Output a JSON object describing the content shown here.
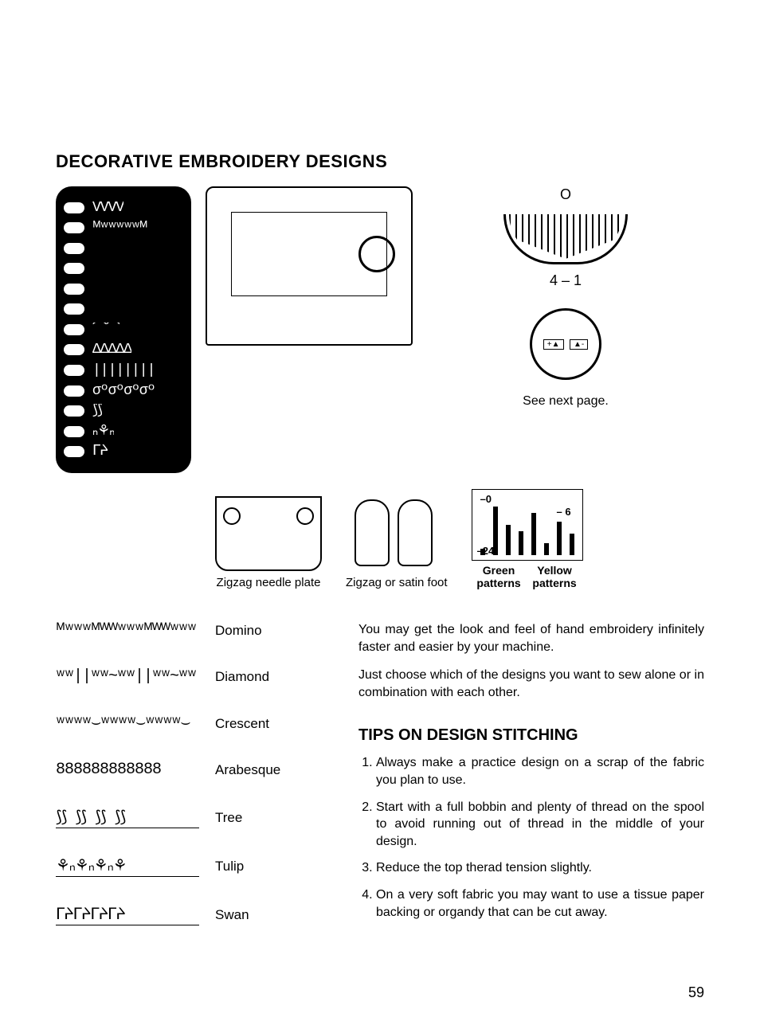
{
  "title": "DECORATIVE EMBROIDERY DESIGNS",
  "page_number": "59",
  "dial": {
    "o_symbol": "O",
    "range_inside": "4",
    "label": "4 – 1",
    "see_next": "See next page."
  },
  "wheel": {
    "left": "+▲",
    "right": "▲-"
  },
  "row2": {
    "plate_caption": "Zigzag needle plate",
    "foot_caption": "Zigzag or satin foot",
    "chart": {
      "n0": "–0",
      "n24": "–24",
      "n6": "– 6",
      "green": "Green patterns",
      "yellow": "Yellow patterns",
      "bars_green": [
        10,
        80,
        50,
        40,
        70
      ],
      "bars_yellow": [
        20,
        55,
        35
      ]
    }
  },
  "patterns": [
    {
      "glyph": "ᴹʷʷʷᴹᵂᵂʷʷʷᴹᵂᵂʷʷʷ",
      "label": "Domino",
      "underline": false
    },
    {
      "glyph": "ʷʷ||ʷʷ~ʷʷ||ʷʷ~ʷʷ||ʷʷ",
      "label": "Diamond",
      "underline": false
    },
    {
      "glyph": "ʷʷʷʷ⌣ʷʷʷʷ⌣ʷʷʷʷ⌣",
      "label": "Crescent",
      "underline": false
    },
    {
      "glyph": "888888888888",
      "label": "Arabesque",
      "underline": false
    },
    {
      "glyph": "⟆⟆  ⟆⟆  ⟆⟆  ⟆⟆",
      "label": "Tree",
      "underline": true
    },
    {
      "glyph": "⚘ₙ⚘ₙ⚘ₙ⚘",
      "label": "Tulip",
      "underline": true
    },
    {
      "glyph": "ᒥᔨᒥᔨᒥᔨᒥᔨ",
      "label": "Swan",
      "underline": true
    }
  ],
  "intro": {
    "p1": "You may get the look and feel of hand embroidery infinitely faster and easier by your machine.",
    "p2": "Just choose which of the designs you want to sew alone or in combination with each other."
  },
  "tips": {
    "heading": "TIPS ON DESIGN STITCHING",
    "items": [
      "Always make a practice design on a scrap of the fabric you plan to use.",
      "Start with a full bobbin and plenty of thread on the spool to avoid running out of thread in the middle of your design.",
      "Reduce the top therad tension slightly.",
      "On a very soft fabric you may want to use a tissue paper backing or organdy that can be cut away."
    ]
  },
  "stitch_panel_glyphs": [
    "VVVV",
    "ᴹʷʷʷʷʷᴹ",
    "",
    "",
    "",
    "",
    "⌒⌒",
    "ΔΔΔΔΔ",
    "||||||||",
    "σºσºσºσº",
    "⟆⟆",
    "ₙ⚘ₙ",
    "ᒥᔨ"
  ]
}
